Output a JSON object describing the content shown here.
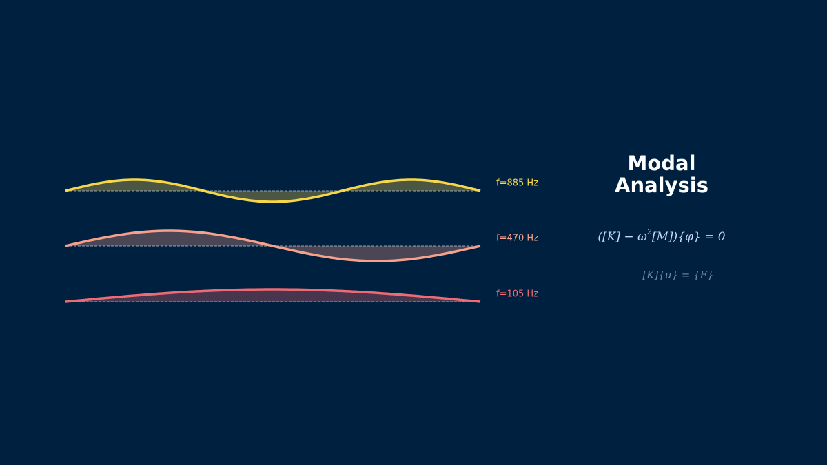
{
  "title": [
    "Modal",
    "Analysis"
  ],
  "modes": [
    {
      "label": "f=885 Hz",
      "color": "#f7d64a"
    },
    {
      "label": "f=470 Hz",
      "color": "#f7a08a"
    },
    {
      "label": "f=105 Hz",
      "color": "#ee6b73"
    }
  ],
  "equations": [
    {
      "before": "([K] − ω",
      "sup": "2",
      "after": "[M]){φ} = 0"
    },
    {
      "text": "[K]{u} = {F}"
    }
  ]
}
